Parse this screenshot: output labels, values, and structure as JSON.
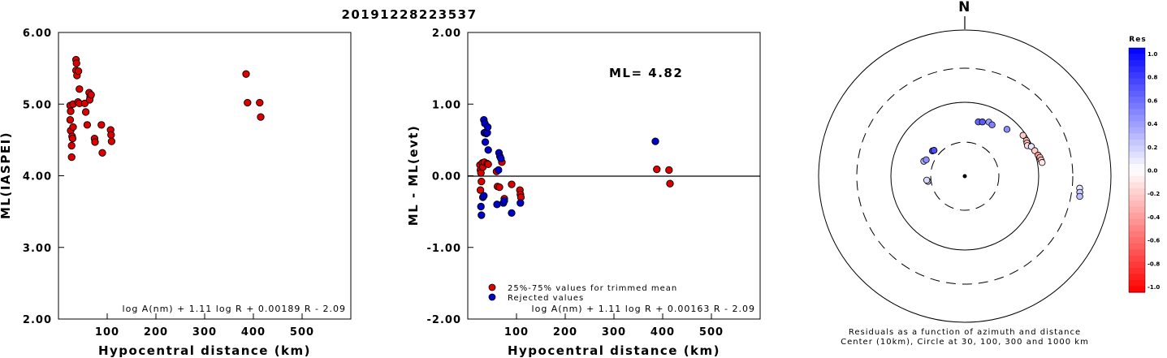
{
  "title": "20191228223537",
  "chart_data": [
    {
      "type": "scatter",
      "name": "ml-vs-distance",
      "xlabel": "Hypocentral distance (km)",
      "ylabel": "ML(IASPEI)",
      "xlim": [
        0,
        600
      ],
      "ylim": [
        2.0,
        6.0
      ],
      "xticks": [
        "100",
        "200",
        "300",
        "400",
        "500"
      ],
      "yticks": [
        "2.00",
        "3.00",
        "4.00",
        "5.00",
        "6.00"
      ],
      "formula": "log A(nm) + 1.11 log R + 0.00189 R - 2.09",
      "series": [
        {
          "color": "#dd0000",
          "points": [
            [
              24,
              4.98
            ],
            [
              25,
              4.9
            ],
            [
              24,
              4.78
            ],
            [
              25,
              4.63
            ],
            [
              27,
              4.42
            ],
            [
              27,
              4.26
            ],
            [
              28,
              4.55
            ],
            [
              29,
              4.52
            ],
            [
              30,
              4.68
            ],
            [
              30,
              5.0
            ],
            [
              36,
              5.62
            ],
            [
              37,
              5.57
            ],
            [
              36,
              5.47
            ],
            [
              38,
              5.4
            ],
            [
              41,
              5.46
            ],
            [
              40,
              5.03
            ],
            [
              43,
              5.01
            ],
            [
              43,
              5.21
            ],
            [
              54,
              5.01
            ],
            [
              56,
              4.89
            ],
            [
              59,
              4.71
            ],
            [
              63,
              5.16
            ],
            [
              65,
              5.1
            ],
            [
              64,
              5.06
            ],
            [
              67,
              5.13
            ],
            [
              74,
              4.52
            ],
            [
              75,
              4.47
            ],
            [
              88,
              4.71
            ],
            [
              90,
              4.32
            ],
            [
              107,
              4.64
            ],
            [
              108,
              4.57
            ],
            [
              109,
              4.48
            ],
            [
              385,
              5.42
            ],
            [
              388,
              5.02
            ],
            [
              413,
              5.02
            ],
            [
              415,
              4.82
            ]
          ]
        }
      ]
    },
    {
      "type": "scatter",
      "name": "residual-vs-distance",
      "xlabel": "Hypocentral distance (km)",
      "ylabel": "ML - ML(evt)",
      "xlim": [
        0,
        600
      ],
      "ylim": [
        -2.0,
        2.0
      ],
      "xticks": [
        "100",
        "200",
        "300",
        "400",
        "500"
      ],
      "yticks": [
        "-2.00",
        "-1.00",
        "0.00",
        "1.00",
        "2.00"
      ],
      "annotation": "ML= 4.82",
      "legend": [
        "25%-75% values for trimmed mean",
        "Rejected values"
      ],
      "formula": "log A(nm) + 1.11 log R + 0.00163 R - 2.09",
      "series": [
        {
          "name": "25%-75% values for trimmed mean",
          "color": "#dd0000",
          "points": [
            [
              25,
              0.15
            ],
            [
              26,
              0.08
            ],
            [
              27,
              0.04
            ],
            [
              28,
              -0.08
            ],
            [
              26,
              -0.2
            ],
            [
              30,
              0.18
            ],
            [
              31,
              0.12
            ],
            [
              34,
              0.19
            ],
            [
              40,
              0.17
            ],
            [
              42,
              0.16
            ],
            [
              59,
              0.06
            ],
            [
              61,
              -0.15
            ],
            [
              65,
              -0.16
            ],
            [
              70,
              0.19
            ],
            [
              75,
              -0.32
            ],
            [
              90,
              -0.12
            ],
            [
              107,
              -0.2
            ],
            [
              108,
              -0.26
            ],
            [
              109,
              -0.3
            ],
            [
              388,
              0.09
            ],
            [
              413,
              0.08
            ],
            [
              415,
              -0.11
            ]
          ]
        },
        {
          "name": "Rejected values",
          "color": "#0000cc",
          "points": [
            [
              33,
              0.78
            ],
            [
              35,
              0.73
            ],
            [
              34,
              0.6
            ],
            [
              38,
              0.59
            ],
            [
              40,
              0.6
            ],
            [
              42,
              0.36
            ],
            [
              36,
              0.47
            ],
            [
              41,
              0.68
            ],
            [
              64,
              0.32
            ],
            [
              66,
              0.27
            ],
            [
              68,
              0.24
            ],
            [
              63,
              0.08
            ],
            [
              27,
              -0.43
            ],
            [
              28,
              -0.55
            ],
            [
              31,
              -0.3
            ],
            [
              33,
              -0.28
            ],
            [
              60,
              -0.4
            ],
            [
              73,
              -0.38
            ],
            [
              75,
              -0.35
            ],
            [
              90,
              -0.52
            ],
            [
              108,
              -0.38
            ],
            [
              385,
              0.48
            ]
          ]
        }
      ]
    },
    {
      "type": "scatter",
      "name": "residuals-azimuth-distance",
      "north_label": "N",
      "caption_line1": "Residuals as a function of azimuth and distance",
      "caption_line2": "Center (10km), Circle at 30, 100, 300 and 1000 km",
      "ring_distances_km": [
        30,
        100,
        300,
        1000
      ],
      "colorbar": {
        "title": "Res",
        "range": [
          -1.0,
          1.0
        ],
        "ticks": [
          "1.0",
          "0.8",
          "0.6",
          "0.4",
          "0.2",
          "0.0",
          "-0.2",
          "-0.4",
          "-0.6",
          "-0.8",
          "-1.0"
        ],
        "positive_color": "#0000ff",
        "negative_color": "#ff0000"
      },
      "points_azimuth_deg_distance_km_residual": [
        [
          -52,
          37,
          0.75
        ],
        [
          -50,
          36,
          0.7
        ],
        [
          -70,
          40,
          0.3
        ],
        [
          -67,
          38,
          0.45
        ],
        [
          -98,
          33,
          0.2
        ],
        [
          -96,
          34,
          0.15
        ],
        [
          14,
          58,
          0.6
        ],
        [
          18,
          60,
          0.65
        ],
        [
          24,
          64,
          0.4
        ],
        [
          28,
          62,
          0.5
        ],
        [
          42,
          72,
          0.45
        ],
        [
          55,
          92,
          -0.2
        ],
        [
          60,
          92,
          -0.3
        ],
        [
          62,
          90,
          -0.25
        ],
        [
          64,
          88,
          -0.15
        ],
        [
          66,
          97,
          0.1
        ],
        [
          70,
          102,
          -0.2
        ],
        [
          74,
          108,
          -0.4
        ],
        [
          76,
          112,
          -0.3
        ],
        [
          78,
          114,
          -0.25
        ],
        [
          80,
          116,
          -0.1
        ],
        [
          96,
          380,
          0.1
        ],
        [
          98,
          388,
          0.2
        ],
        [
          100,
          395,
          0.25
        ]
      ]
    }
  ]
}
